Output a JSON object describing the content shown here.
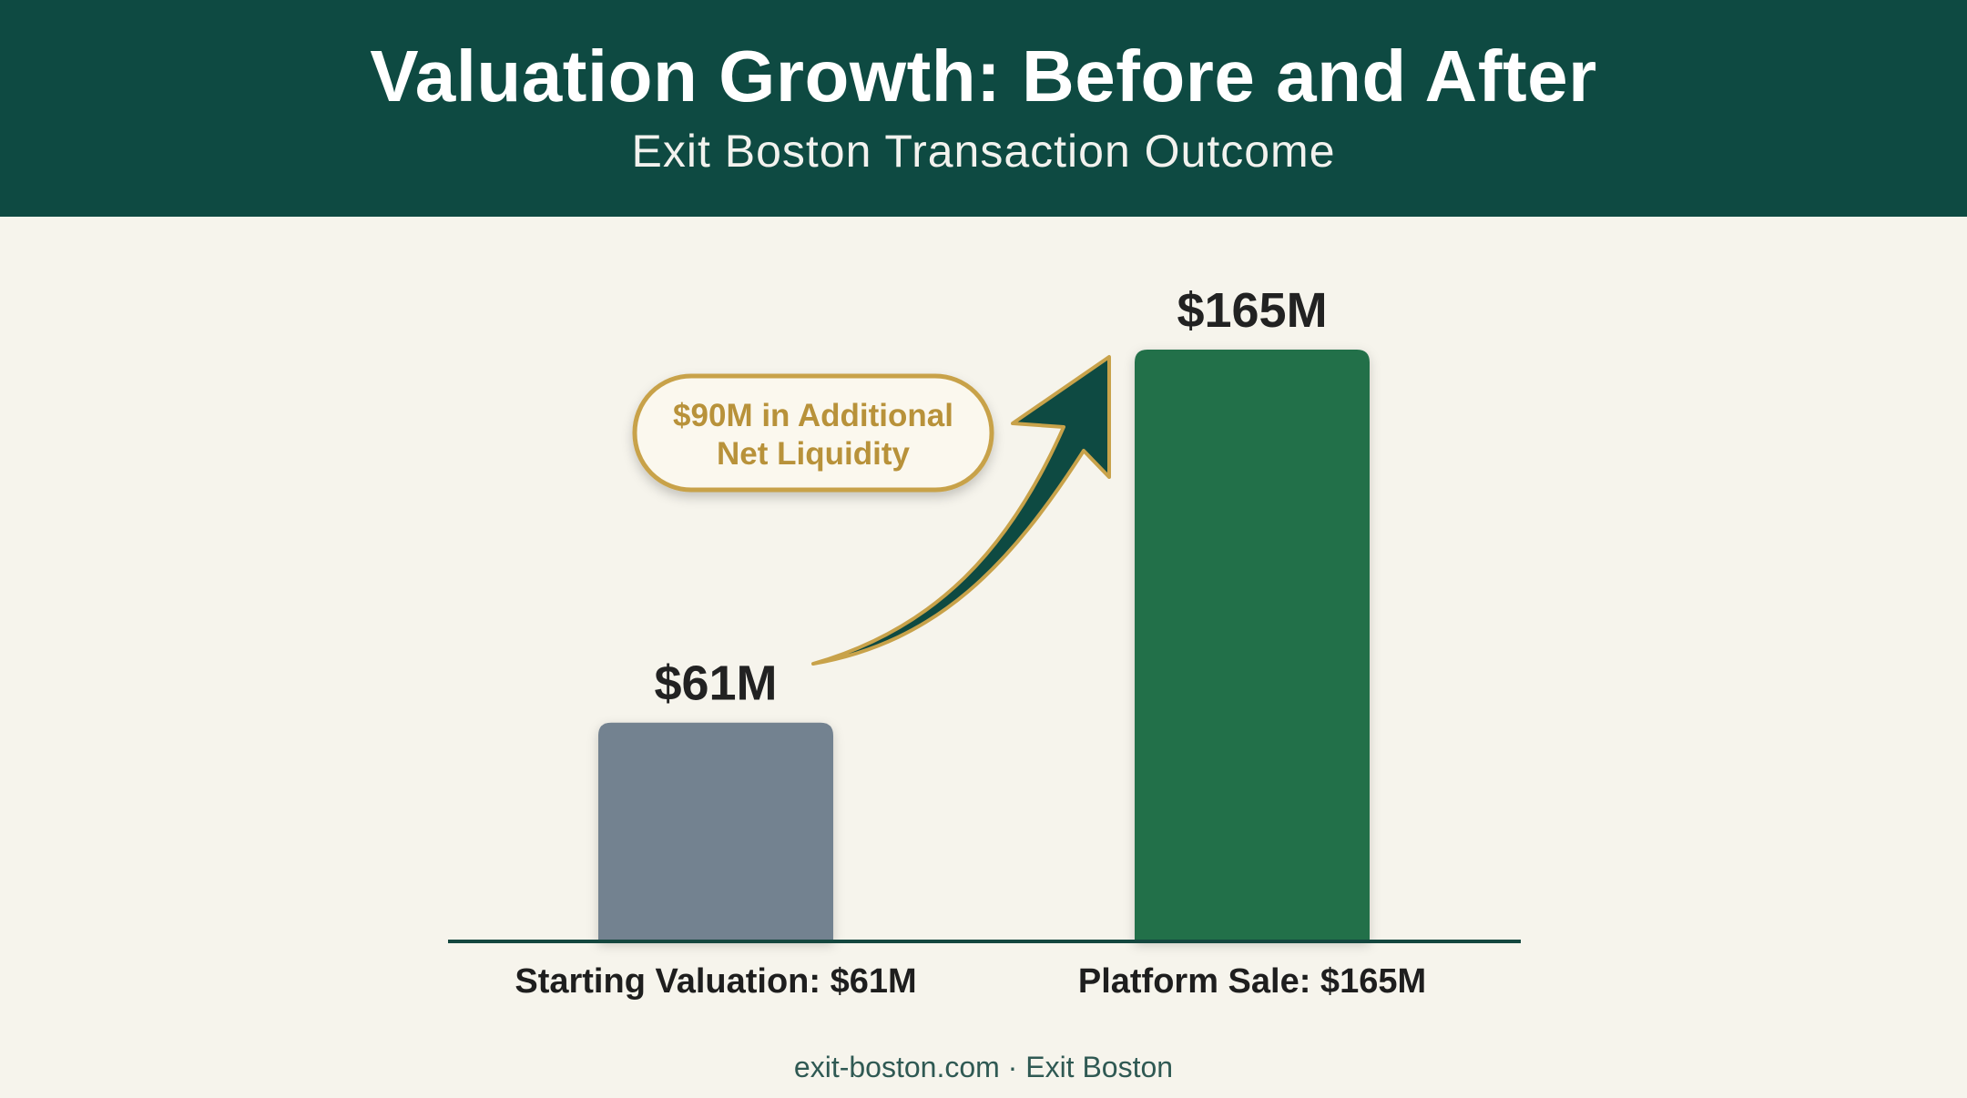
{
  "header": {
    "title": "Valuation Growth: Before and After",
    "subtitle": "Exit Boston Transaction Outcome"
  },
  "chart_data": {
    "type": "bar",
    "categories": [
      "Starting Valuation: $61M",
      "Platform Sale: $165M"
    ],
    "values": [
      61,
      165
    ],
    "value_labels": [
      "$61M",
      "$165M"
    ],
    "bar_colors": [
      "#738290",
      "#23704a"
    ],
    "annotation": {
      "line1": "$90M in Additional",
      "line2": "Net Liquidity"
    },
    "ylim": [
      0,
      165
    ]
  },
  "colors": {
    "header_bg": "#0e4a42",
    "background": "#f6f4ec",
    "axis": "#14473f",
    "arrow": "#0e4a42",
    "gold": "#c8a24a",
    "annotation_text": "#b8923a"
  },
  "footer": {
    "text": "exit-boston.com · Exit Boston"
  }
}
